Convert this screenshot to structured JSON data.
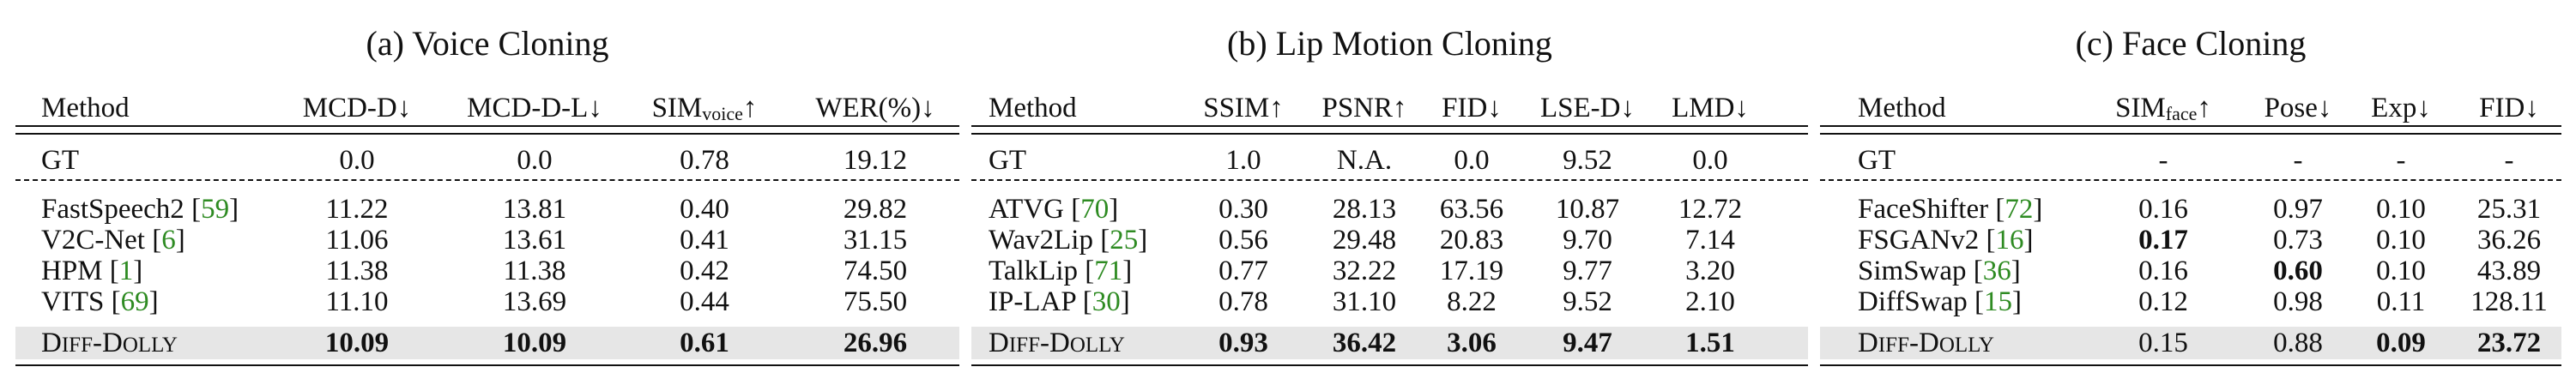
{
  "panels": [
    {
      "title": "(a) Voice Cloning",
      "headers": [
        {
          "text": "Method"
        },
        {
          "text": "MCD-D↓"
        },
        {
          "text": "MCD-D-L↓"
        },
        {
          "text": "SIM",
          "sub": "voice",
          "suffix": "↑"
        },
        {
          "text": "WER(%)↓"
        }
      ],
      "gt": [
        "GT",
        "0.0",
        "0.0",
        "0.78",
        "19.12"
      ],
      "rows": [
        {
          "method": "FastSpeech2",
          "cite": "59",
          "values": [
            "11.22",
            "13.81",
            "0.40",
            "29.82"
          ],
          "bold": [
            false,
            false,
            false,
            false
          ]
        },
        {
          "method": "V2C-Net",
          "cite": "6",
          "values": [
            "11.06",
            "13.61",
            "0.41",
            "31.15"
          ],
          "bold": [
            false,
            false,
            false,
            false
          ]
        },
        {
          "method": "HPM",
          "cite": "1",
          "values": [
            "11.38",
            "11.38",
            "0.42",
            "74.50"
          ],
          "bold": [
            false,
            false,
            false,
            false
          ]
        },
        {
          "method": "VITS",
          "cite": "69",
          "values": [
            "11.10",
            "13.69",
            "0.44",
            "75.50"
          ],
          "bold": [
            false,
            false,
            false,
            false
          ]
        }
      ],
      "ours": {
        "values": [
          "10.09",
          "10.09",
          "0.61",
          "26.96"
        ],
        "bold": [
          true,
          true,
          true,
          true
        ]
      }
    },
    {
      "title": "(b) Lip Motion Cloning",
      "headers": [
        {
          "text": "Method"
        },
        {
          "text": "SSIM↑"
        },
        {
          "text": "PSNR↑"
        },
        {
          "text": "FID↓"
        },
        {
          "text": "LSE-D↓"
        },
        {
          "text": "LMD↓"
        }
      ],
      "gt": [
        "GT",
        "1.0",
        "N.A.",
        "0.0",
        "9.52",
        "0.0"
      ],
      "rows": [
        {
          "method": "ATVG",
          "cite": "70",
          "values": [
            "0.30",
            "28.13",
            "63.56",
            "10.87",
            "12.72"
          ],
          "bold": [
            false,
            false,
            false,
            false,
            false
          ]
        },
        {
          "method": "Wav2Lip",
          "cite": "25",
          "values": [
            "0.56",
            "29.48",
            "20.83",
            "9.70",
            "7.14"
          ],
          "bold": [
            false,
            false,
            false,
            false,
            false
          ]
        },
        {
          "method": "TalkLip",
          "cite": "71",
          "values": [
            "0.77",
            "32.22",
            "17.19",
            "9.77",
            "3.20"
          ],
          "bold": [
            false,
            false,
            false,
            false,
            false
          ]
        },
        {
          "method": "IP-LAP",
          "cite": "30",
          "values": [
            "0.78",
            "31.10",
            "8.22",
            "9.52",
            "2.10"
          ],
          "bold": [
            false,
            false,
            false,
            false,
            false
          ]
        }
      ],
      "ours": {
        "values": [
          "0.93",
          "36.42",
          "3.06",
          "9.47",
          "1.51"
        ],
        "bold": [
          true,
          true,
          true,
          true,
          true
        ]
      }
    },
    {
      "title": "(c) Face Cloning",
      "headers": [
        {
          "text": "Method"
        },
        {
          "text": "SIM",
          "sub": "face",
          "suffix": "↑"
        },
        {
          "text": "Pose↓"
        },
        {
          "text": "Exp↓"
        },
        {
          "text": "FID↓"
        }
      ],
      "gt": [
        "GT",
        "-",
        "-",
        "-",
        "-"
      ],
      "rows": [
        {
          "method": "FaceShifter",
          "cite": "72",
          "values": [
            "0.16",
            "0.97",
            "0.10",
            "25.31"
          ],
          "bold": [
            false,
            false,
            false,
            false
          ]
        },
        {
          "method": "FSGANv2",
          "cite": "16",
          "values": [
            "0.17",
            "0.73",
            "0.10",
            "36.26"
          ],
          "bold": [
            true,
            false,
            false,
            false
          ]
        },
        {
          "method": "SimSwap",
          "cite": "36",
          "values": [
            "0.16",
            "0.60",
            "0.10",
            "43.89"
          ],
          "bold": [
            false,
            true,
            false,
            false
          ]
        },
        {
          "method": "DiffSwap",
          "cite": "15",
          "values": [
            "0.12",
            "0.98",
            "0.11",
            "128.11"
          ],
          "bold": [
            false,
            false,
            false,
            false
          ]
        }
      ],
      "ours": {
        "values": [
          "0.15",
          "0.88",
          "0.09",
          "23.72"
        ],
        "bold": [
          false,
          false,
          true,
          true
        ]
      }
    }
  ],
  "ours_method": {
    "name": "Diff-Dolly",
    "first": "D",
    "rest1": "IFF",
    "dash": "-",
    "first2": "D",
    "rest2": "OLLY"
  },
  "colors": {
    "citation": "#2e8b22",
    "highlight": "#e6e6e6",
    "text": "#111111"
  }
}
